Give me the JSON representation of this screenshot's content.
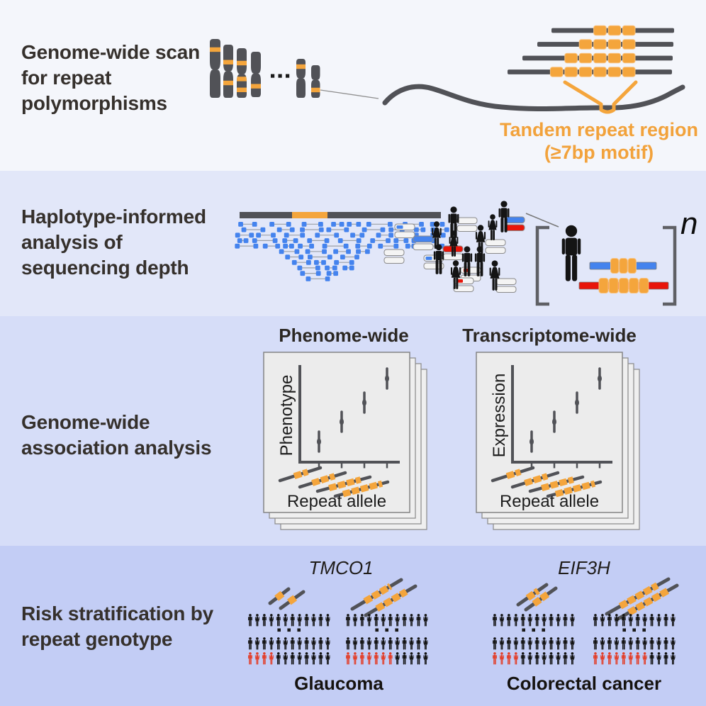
{
  "colors": {
    "orange": "#f4a53c",
    "orange_edge": "#f9c27e",
    "dark": "#515257",
    "blue": "#4483ee",
    "red": "#e8150a",
    "person_black": "#141414",
    "person_red": "#e2402c",
    "card_bg": "#ececec",
    "card_edge": "#848484",
    "bar_bg": "#f4f4f4",
    "bar_edge": "#8a8a8a"
  },
  "panel1": {
    "title": "Genome-wide scan for repeat polymorphisms",
    "ellipsis": "···",
    "caption_line1": "Tandem repeat region",
    "caption_line2": "(≥7bp motif)"
  },
  "panel2": {
    "title": "Haplotype-informed analysis of sequencing depth",
    "n_label": "n"
  },
  "panel3": {
    "title": "Genome-wide association analysis",
    "cards": [
      {
        "title": "Phenome-wide",
        "ylabel": "Phenotype",
        "xlabel": "Repeat allele"
      },
      {
        "title": "Transcriptome-wide",
        "ylabel": "Expression",
        "xlabel": "Repeat allele"
      }
    ]
  },
  "panel4": {
    "title": "Risk stratification by repeat genotype",
    "ellipsis": "···",
    "people_per_row": 12,
    "groups": [
      {
        "gene": "TMCO1",
        "disease": "Glaucoma",
        "low_red": 4,
        "high_red": 7
      },
      {
        "gene": "EIF3H",
        "disease": "Colorectal cancer",
        "low_red": 4,
        "high_red": 8
      }
    ]
  }
}
